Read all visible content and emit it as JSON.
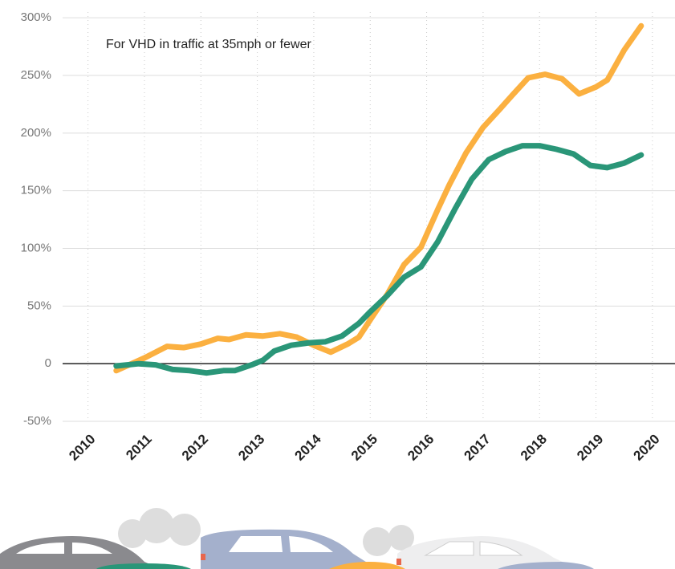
{
  "chart_data": {
    "type": "line",
    "annotation": "For VHD in traffic at 35mph or fewer",
    "xlim": [
      2009.55,
      2020.4
    ],
    "xticks": [
      2010,
      2011,
      2012,
      2013,
      2014,
      2015,
      2016,
      2017,
      2018,
      2019,
      2020
    ],
    "ylim": [
      -50,
      305
    ],
    "yticks": [
      {
        "value": -50,
        "label": "-50%"
      },
      0,
      {
        "value": 50,
        "label": "50%"
      },
      {
        "value": 100,
        "label": "100%"
      },
      {
        "value": 150,
        "label": "150%"
      },
      {
        "value": 200,
        "label": "200%"
      },
      {
        "value": 250,
        "label": "250%"
      },
      {
        "value": 300,
        "label": "300%"
      }
    ],
    "grid": true,
    "series": [
      {
        "color": "#fbb040",
        "x": [
          2010.5,
          2011.0,
          2011.4,
          2011.7,
          2012.0,
          2012.3,
          2012.5,
          2012.8,
          2013.1,
          2013.4,
          2013.7,
          2014.0,
          2014.3,
          2014.6,
          2014.8,
          2015.0,
          2015.3,
          2015.6,
          2015.9,
          2016.2,
          2016.4,
          2016.7,
          2017.0,
          2017.3,
          2017.5,
          2017.8,
          2018.1,
          2018.4,
          2018.7,
          2019.0,
          2019.2,
          2019.5,
          2019.8
        ],
        "values": [
          -6,
          5,
          15,
          14,
          17,
          22,
          21,
          25,
          24,
          26,
          23,
          16,
          10,
          17,
          23,
          38,
          60,
          86,
          101,
          134,
          155,
          183,
          205,
          221,
          232,
          248,
          251,
          247,
          234,
          240,
          246,
          272,
          293
        ]
      },
      {
        "color": "#2a9678",
        "x": [
          2010.5,
          2010.9,
          2011.2,
          2011.5,
          2011.8,
          2012.1,
          2012.4,
          2012.6,
          2012.9,
          2013.1,
          2013.3,
          2013.6,
          2013.9,
          2014.2,
          2014.5,
          2014.8,
          2015.0,
          2015.3,
          2015.6,
          2015.9,
          2016.2,
          2016.5,
          2016.8,
          2017.1,
          2017.4,
          2017.7,
          2018.0,
          2018.3,
          2018.6,
          2018.9,
          2019.2,
          2019.5,
          2019.8
        ],
        "values": [
          -2,
          0,
          -1,
          -5,
          -6,
          -8,
          -6,
          -6,
          -1,
          3,
          11,
          16,
          18,
          19,
          24,
          35,
          45,
          59,
          75,
          84,
          106,
          134,
          160,
          177,
          184,
          189,
          189,
          186,
          182,
          172,
          170,
          174,
          181
        ]
      }
    ]
  }
}
